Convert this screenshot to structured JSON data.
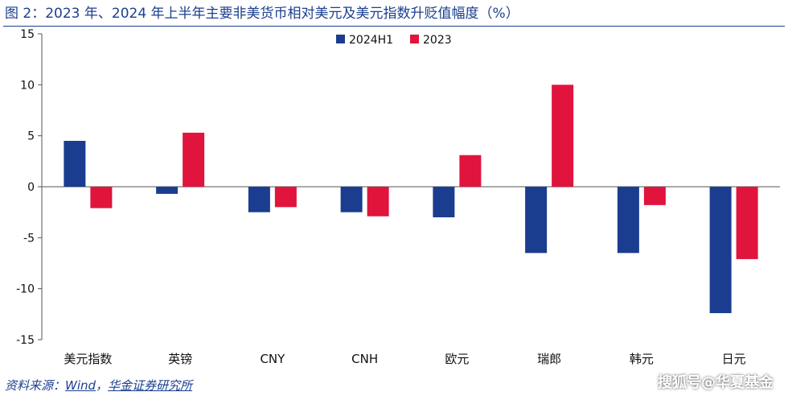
{
  "title": "图 2：2023 年、2024 年上半年主要非美货币相对美元及美元指数升贬值幅度（%）",
  "source": {
    "prefix": "资料来源：",
    "wind": "Wind",
    "sep": "，",
    "firm": "华金证券研究所"
  },
  "watermark": "搜狐号@华夏基金",
  "colors": {
    "series_2024H1": "#1a3d8f",
    "series_2023": "#e0143c"
  },
  "chart_data": {
    "type": "bar",
    "categories": [
      "美元指数",
      "英镑",
      "CNY",
      "CNH",
      "欧元",
      "瑞郎",
      "韩元",
      "日元"
    ],
    "series": [
      {
        "name": "2024H1",
        "values": [
          4.5,
          -0.7,
          -2.5,
          -2.5,
          -3.0,
          -6.5,
          -6.5,
          -12.4
        ]
      },
      {
        "name": "2023",
        "values": [
          -2.1,
          5.3,
          -2.0,
          -2.9,
          3.1,
          10.0,
          -1.8,
          -7.1
        ]
      }
    ],
    "ylim": [
      -15,
      15
    ],
    "yticks": [
      "15",
      "10",
      "5",
      "0",
      "-5",
      "-10",
      "-15"
    ],
    "legend": "top-center",
    "grid": false
  }
}
